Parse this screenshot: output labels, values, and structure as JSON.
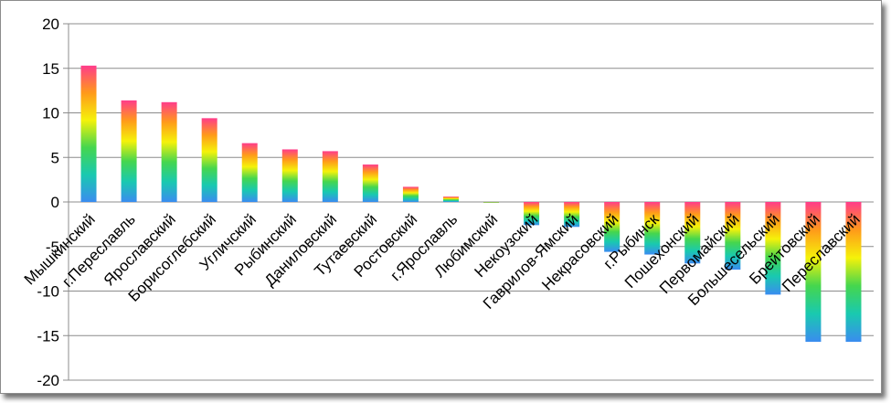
{
  "chart_data": {
    "type": "bar",
    "categories": [
      "Мышкинский",
      "г.Переславль",
      "Ярославский",
      "Борисоглебский",
      "Угличский",
      "Рыбинский",
      "Даниловский",
      "Тутаевский",
      "Ростовский",
      "г.Ярославль",
      "Любимский",
      "Некоузский",
      "Гаврилов-Ямский",
      "Некрасовский",
      "г.Рыбинск",
      "Пошехонский",
      "Первомайский",
      "Большесельский",
      "Брейтовский",
      "Переславский"
    ],
    "values": [
      15.3,
      11.4,
      11.2,
      9.4,
      6.6,
      5.9,
      5.7,
      4.2,
      1.7,
      0.6,
      -0.1,
      -2.6,
      -2.8,
      -5.6,
      -5.9,
      -6.9,
      -7.6,
      -10.4,
      -15.7,
      -15.7
    ],
    "ylim": [
      -20,
      20
    ],
    "yticks": [
      "20",
      "15",
      "10",
      "5",
      "0",
      "-5",
      "-10",
      "-15",
      "-20"
    ],
    "grid": true,
    "title": "",
    "xlabel": "",
    "ylabel": "",
    "bar_gradient": [
      "#3a8cf0",
      "#19c9b0",
      "#45d64e",
      "#f5f20a",
      "#ff9a1a",
      "#ff3c8a"
    ]
  }
}
